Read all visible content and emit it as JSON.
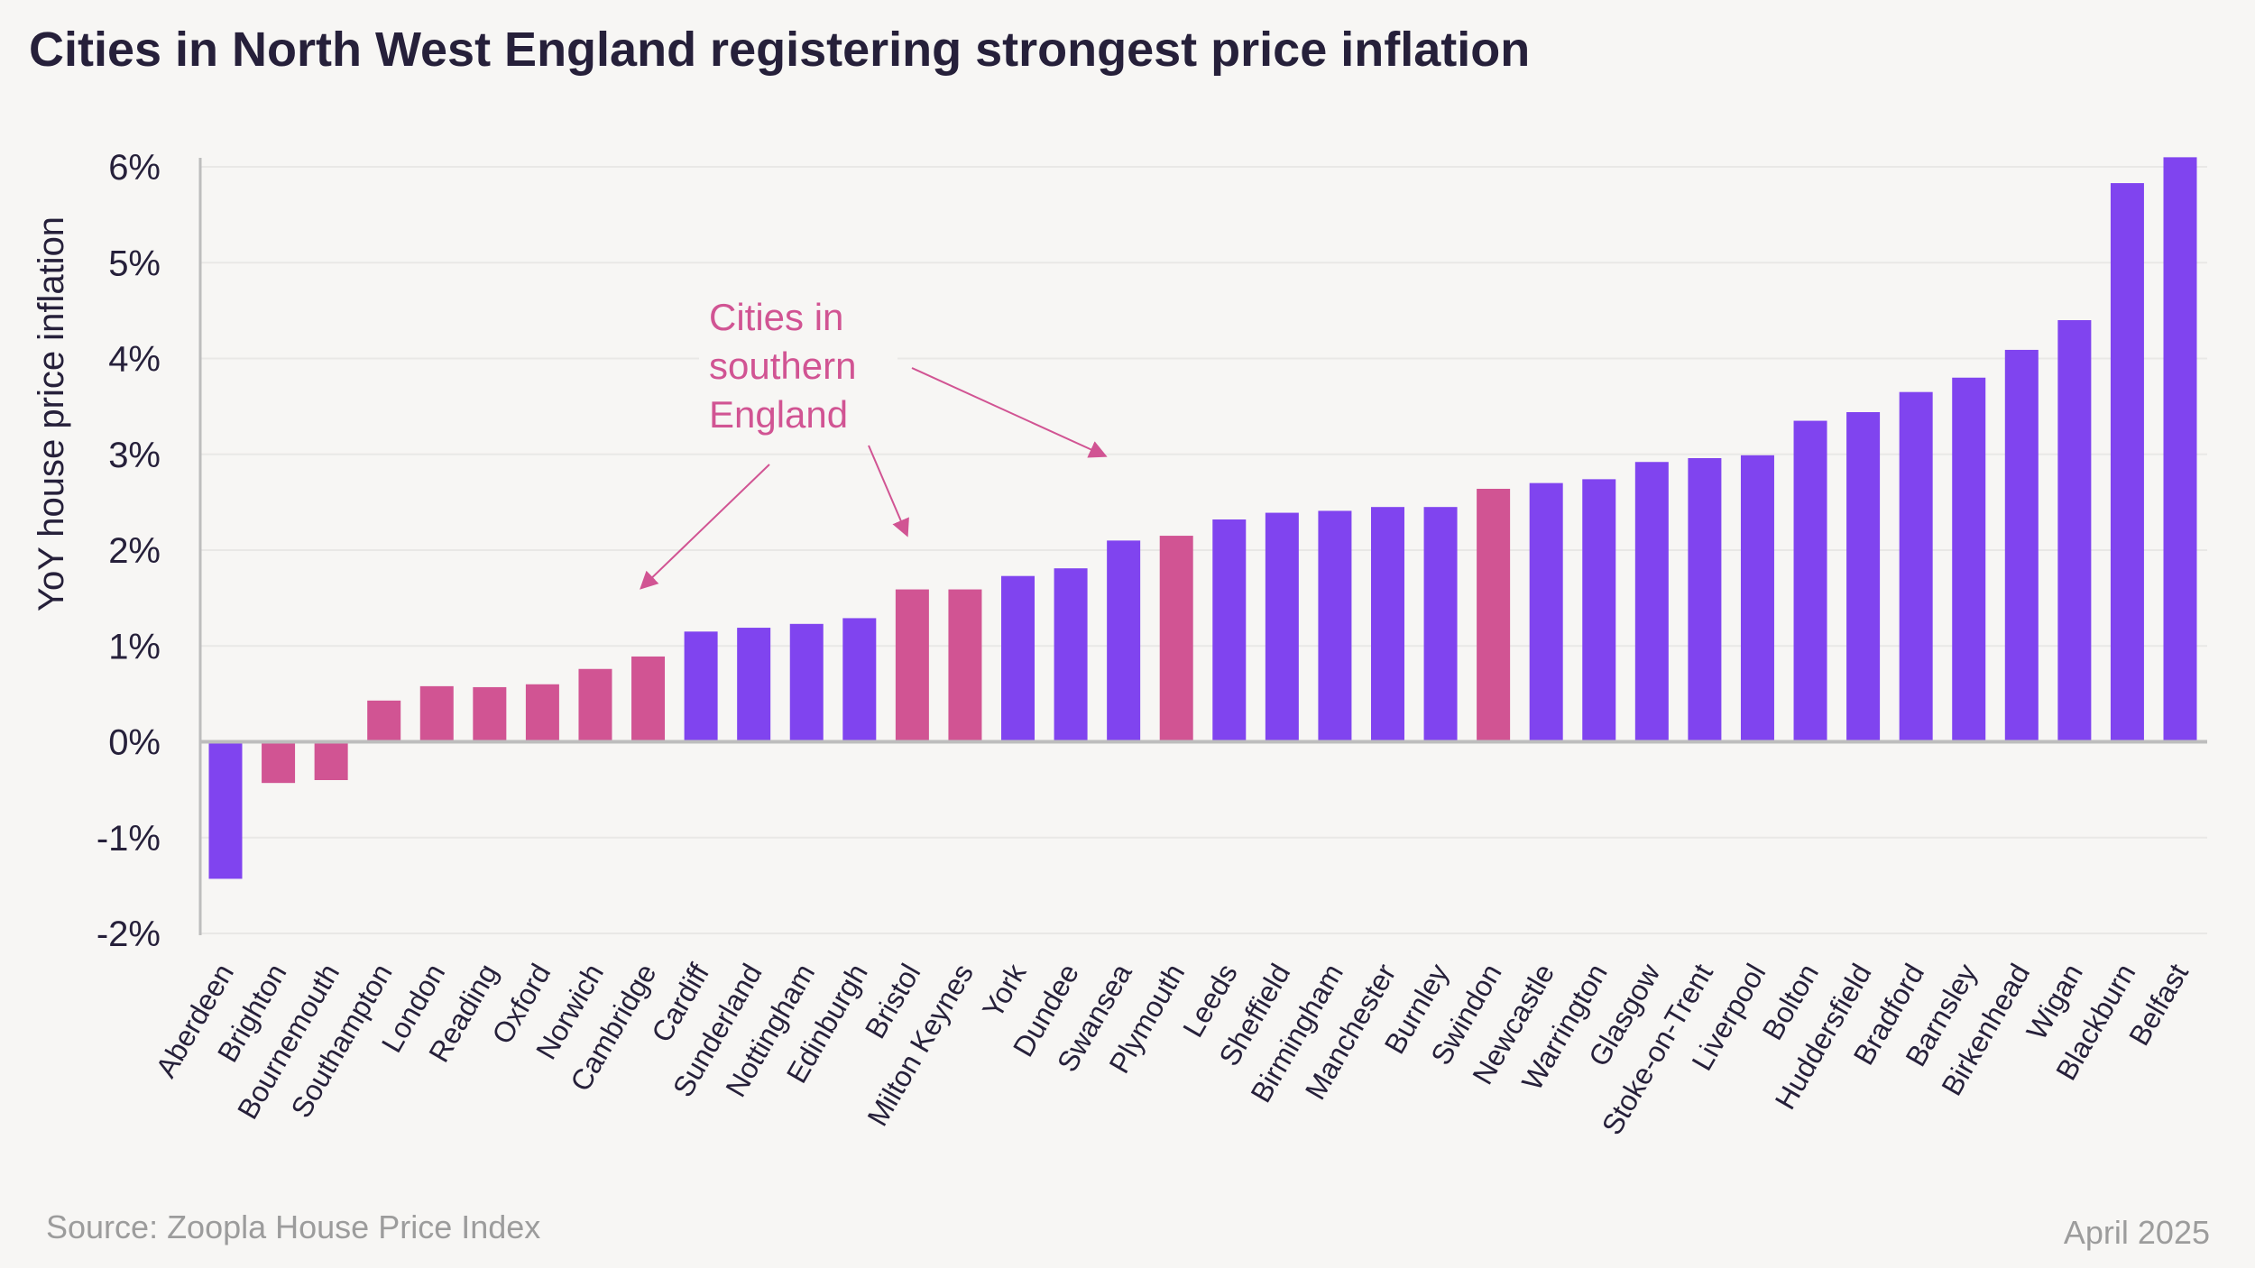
{
  "title": "Cities in North West England registering strongest price inflation",
  "source": "Source: Zoopla House Price Index",
  "date": "April 2025",
  "annotation": {
    "lines": [
      "Cities in",
      "southern",
      "England"
    ],
    "color": "#D15493"
  },
  "chart_data": {
    "type": "bar",
    "title": "Cities in North West England registering strongest price inflation",
    "xlabel": "",
    "ylabel": "YoY house price inflation",
    "ylim": [
      -2,
      6
    ],
    "yticks": [
      "-2%",
      "-1%",
      "0%",
      "1%",
      "2%",
      "3%",
      "4%",
      "5%",
      "6%"
    ],
    "grid": true,
    "colors": {
      "northern_and_other": "#8044EF",
      "southern_england": "#D15493"
    },
    "categories": [
      "Aberdeen",
      "Brighton",
      "Bournemouth",
      "Southampton",
      "London",
      "Reading",
      "Oxford",
      "Norwich",
      "Cambridge",
      "Cardiff",
      "Sunderland",
      "Nottingham",
      "Edinburgh",
      "Bristol",
      "Milton Keynes",
      "York",
      "Dundee",
      "Swansea",
      "Plymouth",
      "Leeds",
      "Sheffield",
      "Birmingham",
      "Manchester",
      "Burnley",
      "Swindon",
      "Newcastle",
      "Warrington",
      "Glasgow",
      "Stoke-on-Trent",
      "Liverpool",
      "Bolton",
      "Huddersfield",
      "Bradford",
      "Barnsley",
      "Birkenhead",
      "Wigan",
      "Blackburn",
      "Belfast"
    ],
    "values": [
      -1.43,
      -0.43,
      -0.4,
      0.43,
      0.58,
      0.57,
      0.6,
      0.76,
      0.89,
      1.15,
      1.19,
      1.23,
      1.29,
      1.59,
      1.59,
      1.73,
      1.81,
      2.1,
      2.15,
      2.32,
      2.39,
      2.41,
      2.45,
      2.45,
      2.64,
      2.7,
      2.74,
      2.92,
      2.96,
      2.99,
      3.35,
      3.44,
      3.65,
      3.8,
      4.09,
      4.4,
      5.83,
      6.1
    ],
    "southern_england": [
      false,
      true,
      true,
      true,
      true,
      true,
      true,
      true,
      true,
      false,
      false,
      false,
      false,
      true,
      true,
      false,
      false,
      false,
      true,
      false,
      false,
      false,
      false,
      false,
      true,
      false,
      false,
      false,
      false,
      false,
      false,
      false,
      false,
      false,
      false,
      false,
      false,
      false
    ]
  }
}
